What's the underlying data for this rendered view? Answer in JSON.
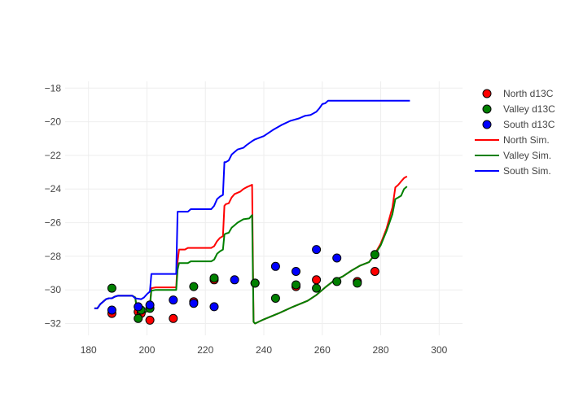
{
  "chart_data": {
    "type": "line",
    "title": "",
    "xlabel": "",
    "ylabel": "",
    "xlim": [
      172,
      308
    ],
    "ylim": [
      -32.7,
      -17.6
    ],
    "x_ticks": [
      180,
      200,
      220,
      240,
      260,
      280,
      300
    ],
    "y_ticks": [
      -18,
      -20,
      -22,
      -24,
      -26,
      -28,
      -30,
      -32
    ],
    "x_tick_labels": [
      "180",
      "200",
      "220",
      "240",
      "260",
      "280",
      "300"
    ],
    "y_tick_labels": [
      "−18",
      "−20",
      "−22",
      "−24",
      "−26",
      "−28",
      "−30",
      "−32"
    ],
    "grid": true,
    "legend_position": "top-right",
    "colors": {
      "north": "#ff0000",
      "valley": "#008000",
      "south": "#0000ff",
      "grid": "#eeeeee",
      "axis_text": "#444444"
    },
    "legend": [
      {
        "label": "North d13C",
        "kind": "marker",
        "color": "#ff0000"
      },
      {
        "label": "Valley d13C",
        "kind": "marker",
        "color": "#008000"
      },
      {
        "label": "South d13C",
        "kind": "marker",
        "color": "#0000ff"
      },
      {
        "label": "North Sim.",
        "kind": "line",
        "color": "#ff0000"
      },
      {
        "label": "Valley Sim.",
        "kind": "line",
        "color": "#008000"
      },
      {
        "label": "South Sim.",
        "kind": "line",
        "color": "#0000ff"
      }
    ],
    "scatter_series": [
      {
        "name": "North d13C",
        "color": "#ff0000",
        "points": [
          [
            188,
            -31.4
          ],
          [
            197,
            -31.3
          ],
          [
            198,
            -31.4
          ],
          [
            201,
            -31.8
          ],
          [
            209,
            -31.7
          ],
          [
            216,
            -30.7
          ],
          [
            223,
            -29.4
          ],
          [
            237,
            -29.6
          ],
          [
            251,
            -29.8
          ],
          [
            258,
            -29.4
          ],
          [
            272,
            -29.5
          ],
          [
            278,
            -28.9
          ]
        ]
      },
      {
        "name": "Valley d13C",
        "color": "#008000",
        "points": [
          [
            188,
            -29.9
          ],
          [
            197,
            -31.7
          ],
          [
            198,
            -31.2
          ],
          [
            201,
            -31.1
          ],
          [
            216,
            -29.8
          ],
          [
            223,
            -29.3
          ],
          [
            237,
            -29.6
          ],
          [
            244,
            -30.5
          ],
          [
            251,
            -29.7
          ],
          [
            258,
            -29.9
          ],
          [
            265,
            -29.5
          ],
          [
            272,
            -29.6
          ],
          [
            278,
            -27.9
          ]
        ]
      },
      {
        "name": "South d13C",
        "color": "#0000ff",
        "points": [
          [
            188,
            -31.2
          ],
          [
            197,
            -31.0
          ],
          [
            201,
            -30.9
          ],
          [
            209,
            -30.6
          ],
          [
            216,
            -30.8
          ],
          [
            223,
            -31.0
          ],
          [
            230,
            -29.4
          ],
          [
            244,
            -28.6
          ],
          [
            251,
            -28.9
          ],
          [
            258,
            -27.6
          ],
          [
            265,
            -28.1
          ]
        ]
      }
    ],
    "line_series": [
      {
        "name": "North Sim.",
        "color": "#ff0000",
        "points": [
          [
            182,
            -31.1
          ],
          [
            183,
            -31.1
          ],
          [
            184,
            -30.85
          ],
          [
            185,
            -30.7
          ],
          [
            186,
            -30.55
          ],
          [
            187,
            -30.5
          ],
          [
            188,
            -30.5
          ],
          [
            189,
            -30.4
          ],
          [
            190,
            -30.35
          ],
          [
            195,
            -30.35
          ],
          [
            196,
            -30.45
          ],
          [
            196.5,
            -31.1
          ],
          [
            197,
            -31.35
          ],
          [
            199,
            -31.4
          ],
          [
            200,
            -31.25
          ],
          [
            201,
            -30.95
          ],
          [
            201.5,
            -29.9
          ],
          [
            203,
            -29.85
          ],
          [
            210,
            -29.85
          ],
          [
            210.5,
            -28.3
          ],
          [
            211,
            -27.6
          ],
          [
            213,
            -27.6
          ],
          [
            214,
            -27.5
          ],
          [
            215,
            -27.5
          ],
          [
            222,
            -27.5
          ],
          [
            223,
            -27.4
          ],
          [
            224,
            -27.1
          ],
          [
            225,
            -26.9
          ],
          [
            226,
            -26.8
          ],
          [
            226.5,
            -25.0
          ],
          [
            227,
            -24.9
          ],
          [
            228,
            -24.85
          ],
          [
            229,
            -24.5
          ],
          [
            230,
            -24.3
          ],
          [
            232,
            -24.15
          ],
          [
            233,
            -24.0
          ],
          [
            234,
            -23.9
          ],
          [
            236,
            -23.75
          ],
          [
            236.5,
            -31.9
          ],
          [
            237,
            -32.0
          ],
          [
            240,
            -31.75
          ],
          [
            245,
            -31.4
          ],
          [
            250,
            -31.0
          ],
          [
            255,
            -30.65
          ],
          [
            258,
            -30.3
          ],
          [
            261,
            -29.85
          ],
          [
            264,
            -29.45
          ],
          [
            267,
            -29.2
          ],
          [
            270,
            -28.85
          ],
          [
            273,
            -28.55
          ],
          [
            276,
            -28.35
          ],
          [
            278,
            -27.85
          ],
          [
            280,
            -27.25
          ],
          [
            282,
            -26.35
          ],
          [
            284,
            -25.1
          ],
          [
            285,
            -23.9
          ],
          [
            286,
            -23.75
          ],
          [
            287,
            -23.55
          ],
          [
            288,
            -23.35
          ],
          [
            289,
            -23.25
          ]
        ]
      },
      {
        "name": "Valley Sim.",
        "color": "#008000",
        "points": [
          [
            182,
            -31.1
          ],
          [
            183,
            -31.1
          ],
          [
            184,
            -30.85
          ],
          [
            185,
            -30.7
          ],
          [
            186,
            -30.55
          ],
          [
            187,
            -30.5
          ],
          [
            188,
            -30.5
          ],
          [
            189,
            -30.4
          ],
          [
            190,
            -30.35
          ],
          [
            195,
            -30.35
          ],
          [
            196,
            -30.45
          ],
          [
            196.5,
            -31.1
          ],
          [
            197,
            -31.35
          ],
          [
            199,
            -31.4
          ],
          [
            200,
            -31.25
          ],
          [
            201,
            -30.95
          ],
          [
            201.5,
            -30.05
          ],
          [
            203,
            -30.0
          ],
          [
            210,
            -30.0
          ],
          [
            210.5,
            -28.8
          ],
          [
            211,
            -28.4
          ],
          [
            214,
            -28.4
          ],
          [
            215,
            -28.3
          ],
          [
            222,
            -28.3
          ],
          [
            223,
            -28.2
          ],
          [
            224,
            -27.85
          ],
          [
            225,
            -27.7
          ],
          [
            226,
            -27.6
          ],
          [
            226.5,
            -26.7
          ],
          [
            227,
            -26.65
          ],
          [
            228,
            -26.6
          ],
          [
            229,
            -26.3
          ],
          [
            230,
            -26.15
          ],
          [
            231,
            -26.0
          ],
          [
            232,
            -25.9
          ],
          [
            233,
            -25.8
          ],
          [
            235,
            -25.75
          ],
          [
            236,
            -25.55
          ],
          [
            236.5,
            -31.9
          ],
          [
            237,
            -32.0
          ],
          [
            240,
            -31.75
          ],
          [
            245,
            -31.4
          ],
          [
            250,
            -31.0
          ],
          [
            255,
            -30.65
          ],
          [
            258,
            -30.3
          ],
          [
            261,
            -29.85
          ],
          [
            264,
            -29.45
          ],
          [
            267,
            -29.2
          ],
          [
            270,
            -28.85
          ],
          [
            273,
            -28.55
          ],
          [
            276,
            -28.35
          ],
          [
            278,
            -27.9
          ],
          [
            280,
            -27.35
          ],
          [
            282,
            -26.5
          ],
          [
            284,
            -25.5
          ],
          [
            285,
            -24.6
          ],
          [
            286,
            -24.5
          ],
          [
            287,
            -24.4
          ],
          [
            288,
            -24.0
          ],
          [
            289,
            -23.85
          ]
        ]
      },
      {
        "name": "South Sim.",
        "color": "#0000ff",
        "points": [
          [
            182,
            -31.1
          ],
          [
            183,
            -31.1
          ],
          [
            184,
            -30.85
          ],
          [
            185,
            -30.7
          ],
          [
            186,
            -30.55
          ],
          [
            187,
            -30.5
          ],
          [
            188,
            -30.5
          ],
          [
            189,
            -30.4
          ],
          [
            190,
            -30.35
          ],
          [
            195,
            -30.35
          ],
          [
            196,
            -30.5
          ],
          [
            198,
            -30.55
          ],
          [
            199,
            -30.45
          ],
          [
            200,
            -30.25
          ],
          [
            201,
            -30.1
          ],
          [
            201.5,
            -29.05
          ],
          [
            210,
            -29.05
          ],
          [
            210.5,
            -25.35
          ],
          [
            214,
            -25.35
          ],
          [
            215,
            -25.2
          ],
          [
            222,
            -25.2
          ],
          [
            223,
            -25.0
          ],
          [
            224,
            -24.6
          ],
          [
            225,
            -24.45
          ],
          [
            226,
            -24.35
          ],
          [
            226.5,
            -22.4
          ],
          [
            227,
            -22.4
          ],
          [
            228,
            -22.3
          ],
          [
            229,
            -21.95
          ],
          [
            230,
            -21.8
          ],
          [
            231,
            -21.65
          ],
          [
            233,
            -21.55
          ],
          [
            234,
            -21.4
          ],
          [
            236,
            -21.15
          ],
          [
            237,
            -21.05
          ],
          [
            240,
            -20.85
          ],
          [
            243,
            -20.5
          ],
          [
            246,
            -20.2
          ],
          [
            249,
            -19.95
          ],
          [
            252,
            -19.8
          ],
          [
            254,
            -19.65
          ],
          [
            256,
            -19.6
          ],
          [
            258,
            -19.4
          ],
          [
            259,
            -19.2
          ],
          [
            260,
            -18.95
          ],
          [
            261,
            -18.9
          ],
          [
            262,
            -18.75
          ],
          [
            290,
            -18.75
          ]
        ]
      }
    ]
  }
}
